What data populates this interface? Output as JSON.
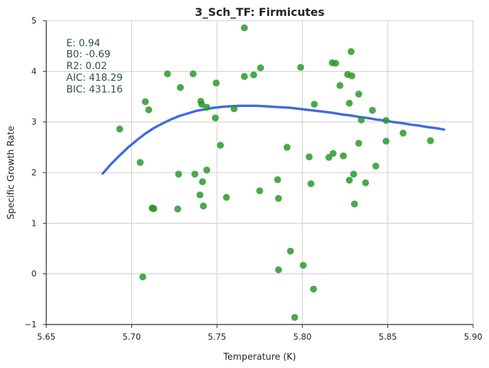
{
  "chart_data": {
    "type": "scatter",
    "title": "3_Sch_TF: Firmicutes",
    "xlabel": "Temperature (K)",
    "ylabel": "Specific Growth Rate",
    "xlim": [
      5.65,
      5.9
    ],
    "ylim": [
      -1,
      5
    ],
    "xticks": [
      5.65,
      5.7,
      5.75,
      5.8,
      5.85,
      5.9
    ],
    "xtick_labels": [
      "5.65",
      "5.70",
      "5.75",
      "5.80",
      "5.85",
      "5.90"
    ],
    "yticks": [
      -1,
      0,
      1,
      2,
      3,
      4,
      5
    ],
    "ytick_labels": [
      "−1",
      "0",
      "1",
      "2",
      "3",
      "4",
      "5"
    ],
    "grid": true,
    "colors": {
      "points": "#2a9a2a",
      "fit_line": "#4169e1",
      "stats_text": "#2f4f4f"
    },
    "annotations": [
      "E:  0.94",
      "B0:  -0.69",
      "R2:  0.02",
      "AIC: 418.29",
      "BIC: 431.16"
    ],
    "series": [
      {
        "kind": "points",
        "x": [
          5.693,
          5.705,
          5.7065,
          5.708,
          5.71,
          5.712,
          5.7125,
          5.713,
          5.721,
          5.727,
          5.7275,
          5.7285,
          5.736,
          5.737,
          5.74,
          5.7405,
          5.741,
          5.7415,
          5.742,
          5.744,
          5.744,
          5.749,
          5.7495,
          5.752,
          5.7555,
          5.76,
          5.766,
          5.766,
          5.7715,
          5.775,
          5.7755,
          5.7855,
          5.786,
          5.786,
          5.791,
          5.793,
          5.7955,
          5.799,
          5.8005,
          5.804,
          5.805,
          5.807,
          5.8065,
          5.8155,
          5.8175,
          5.818,
          5.8195,
          5.822,
          5.824,
          5.8265,
          5.8275,
          5.8275,
          5.8285,
          5.829,
          5.83,
          5.8305,
          5.833,
          5.833,
          5.8345,
          5.837,
          5.841,
          5.843,
          5.849,
          5.849,
          5.859,
          5.875
        ],
        "y": [
          2.86,
          2.2,
          -0.06,
          3.4,
          3.24,
          1.3,
          1.29,
          1.29,
          3.95,
          1.28,
          1.97,
          3.68,
          3.95,
          1.97,
          1.56,
          3.41,
          3.35,
          1.82,
          1.34,
          3.29,
          2.05,
          3.08,
          3.77,
          2.54,
          1.51,
          3.26,
          3.9,
          4.86,
          3.93,
          1.64,
          4.07,
          1.86,
          1.49,
          0.08,
          2.5,
          0.45,
          -0.86,
          4.08,
          0.17,
          2.31,
          1.78,
          3.35,
          -0.3,
          2.3,
          4.17,
          2.38,
          4.16,
          3.72,
          2.33,
          3.94,
          3.37,
          1.85,
          4.39,
          3.91,
          1.97,
          1.38,
          3.55,
          2.58,
          3.04,
          1.8,
          3.23,
          2.13,
          3.03,
          2.62,
          2.78,
          2.63
        ]
      },
      {
        "kind": "fit_line",
        "x": [
          5.683,
          5.688,
          5.693,
          5.698,
          5.703,
          5.708,
          5.713,
          5.718,
          5.723,
          5.728,
          5.733,
          5.738,
          5.743,
          5.748,
          5.753,
          5.758,
          5.763,
          5.768,
          5.773,
          5.778,
          5.783,
          5.788,
          5.793,
          5.798,
          5.803,
          5.808,
          5.813,
          5.818,
          5.823,
          5.828,
          5.833,
          5.838,
          5.843,
          5.848,
          5.853,
          5.858,
          5.863,
          5.868,
          5.873,
          5.878,
          5.883
        ],
        "y": [
          1.98,
          2.17,
          2.34,
          2.5,
          2.64,
          2.77,
          2.88,
          2.97,
          3.05,
          3.12,
          3.17,
          3.22,
          3.25,
          3.28,
          3.3,
          3.31,
          3.32,
          3.32,
          3.32,
          3.31,
          3.3,
          3.29,
          3.28,
          3.26,
          3.24,
          3.22,
          3.2,
          3.18,
          3.15,
          3.13,
          3.1,
          3.08,
          3.05,
          3.03,
          3.0,
          2.98,
          2.95,
          2.93,
          2.9,
          2.88,
          2.85
        ]
      }
    ]
  }
}
